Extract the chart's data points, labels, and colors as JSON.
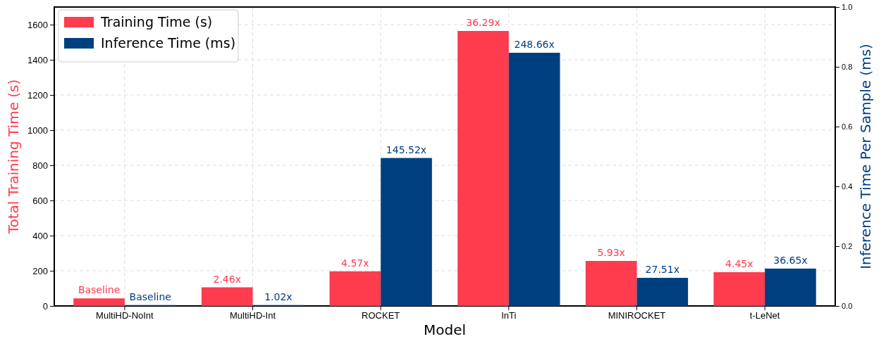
{
  "chart_data": {
    "type": "bar",
    "xlabel": "Model",
    "ylabel": "Total Training Time (s)",
    "y2label": "Inference Time Per Sample (ms)",
    "categories": [
      "MultiHD-NoInt",
      "MultiHD-Int",
      "ROCKET",
      "InTi",
      "MINIROCKET",
      "t-LeNet"
    ],
    "series": [
      {
        "name": "Training Time (s)",
        "color": "#ff3b4e",
        "values": [
          43,
          106,
          197,
          1564,
          256,
          192
        ]
      },
      {
        "name": "Inference Time (ms)",
        "color": "#003f7f",
        "axis": "y2",
        "values": [
          0.003,
          0.003,
          0.495,
          0.847,
          0.094,
          0.125
        ]
      }
    ],
    "annotations": [
      {
        "text": "Baseline",
        "x": "MultiHD-NoInt",
        "y": 43
      },
      {
        "text": "2.46x",
        "x": "MultiHD-Int",
        "y": 106
      },
      {
        "text": "4.57x",
        "x": "ROCKET",
        "y": 197
      },
      {
        "text": "36.29x",
        "x": "InTi",
        "y": 1564
      },
      {
        "text": "5.93x",
        "x": "MINIROCKET",
        "y": 256
      },
      {
        "text": "4.45x",
        "x": "t-LeNet",
        "y": 192
      },
      {
        "text": "Baseline",
        "x": "MultiHD-NoInt",
        "y": 5
      },
      {
        "text": "1.02x",
        "x": "MultiHD-Int",
        "y": 5
      },
      {
        "text": "145.52x",
        "x": "ROCKET",
        "y": 842
      },
      {
        "text": "248.66x",
        "x": "InTi",
        "y": 1440
      },
      {
        "text": "27.51x",
        "x": "MINIROCKET",
        "y": 160
      },
      {
        "text": "36.65x",
        "x": "t-LeNet",
        "y": 213
      }
    ],
    "ylim": [
      0,
      1700
    ],
    "yticks": [
      0,
      200,
      400,
      600,
      800,
      1000,
      1200,
      1400,
      1600
    ],
    "y2lim": [
      0,
      1
    ],
    "y2ticks": [
      {
        "value": 0,
        "label": "0.0"
      },
      {
        "value": 0.2,
        "label": "0.2"
      },
      {
        "value": 0.4,
        "label": "0.4"
      },
      {
        "value": 0.6,
        "label": "0.6"
      },
      {
        "value": 0.8,
        "label": "0.8"
      },
      {
        "value": 1,
        "label": "1.0"
      }
    ],
    "grid": true,
    "legend": "top left"
  }
}
